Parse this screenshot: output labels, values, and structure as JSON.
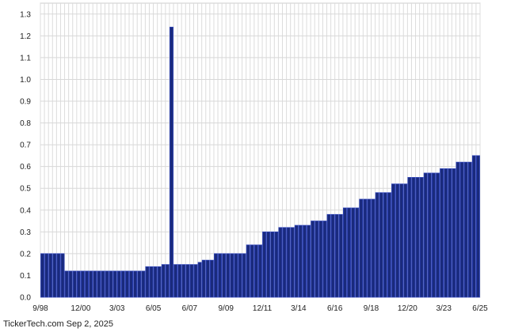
{
  "chart_data": {
    "type": "bar",
    "title": "",
    "xlabel": "",
    "ylabel": "",
    "ylim": [
      0,
      1.35
    ],
    "y_ticks": [
      "0.0",
      "0.1",
      "0.2",
      "0.3",
      "0.4",
      "0.5",
      "0.6",
      "0.7",
      "0.8",
      "0.9",
      "1.0",
      "1.1",
      "1.2",
      "1.3"
    ],
    "x_ticks": [
      "9/98",
      "12/00",
      "3/03",
      "6/05",
      "6/07",
      "9/09",
      "12/11",
      "3/14",
      "6/16",
      "9/18",
      "12/20",
      "3/23",
      "6/25"
    ],
    "grid": true,
    "bar_color": "#1a2a7c",
    "bar_edge_color": "#2a40b8",
    "values": [
      0.2,
      0.2,
      0.2,
      0.2,
      0.2,
      0.2,
      0.12,
      0.12,
      0.12,
      0.12,
      0.12,
      0.12,
      0.12,
      0.12,
      0.12,
      0.12,
      0.12,
      0.12,
      0.12,
      0.12,
      0.12,
      0.12,
      0.12,
      0.12,
      0.12,
      0.12,
      0.14,
      0.14,
      0.14,
      0.14,
      0.15,
      0.15,
      1.24,
      0.15,
      0.15,
      0.15,
      0.15,
      0.15,
      0.15,
      0.16,
      0.17,
      0.17,
      0.17,
      0.2,
      0.2,
      0.2,
      0.2,
      0.2,
      0.2,
      0.2,
      0.2,
      0.24,
      0.24,
      0.24,
      0.24,
      0.3,
      0.3,
      0.3,
      0.3,
      0.32,
      0.32,
      0.32,
      0.32,
      0.33,
      0.33,
      0.33,
      0.33,
      0.35,
      0.35,
      0.35,
      0.35,
      0.38,
      0.38,
      0.38,
      0.38,
      0.41,
      0.41,
      0.41,
      0.41,
      0.45,
      0.45,
      0.45,
      0.45,
      0.48,
      0.48,
      0.48,
      0.48,
      0.52,
      0.52,
      0.52,
      0.52,
      0.55,
      0.55,
      0.55,
      0.55,
      0.57,
      0.57,
      0.57,
      0.57,
      0.59,
      0.59,
      0.59,
      0.59,
      0.62,
      0.62,
      0.62,
      0.62,
      0.65,
      0.65
    ]
  },
  "footer": {
    "credit": "TickerTech.com  Sep 2, 2025"
  }
}
